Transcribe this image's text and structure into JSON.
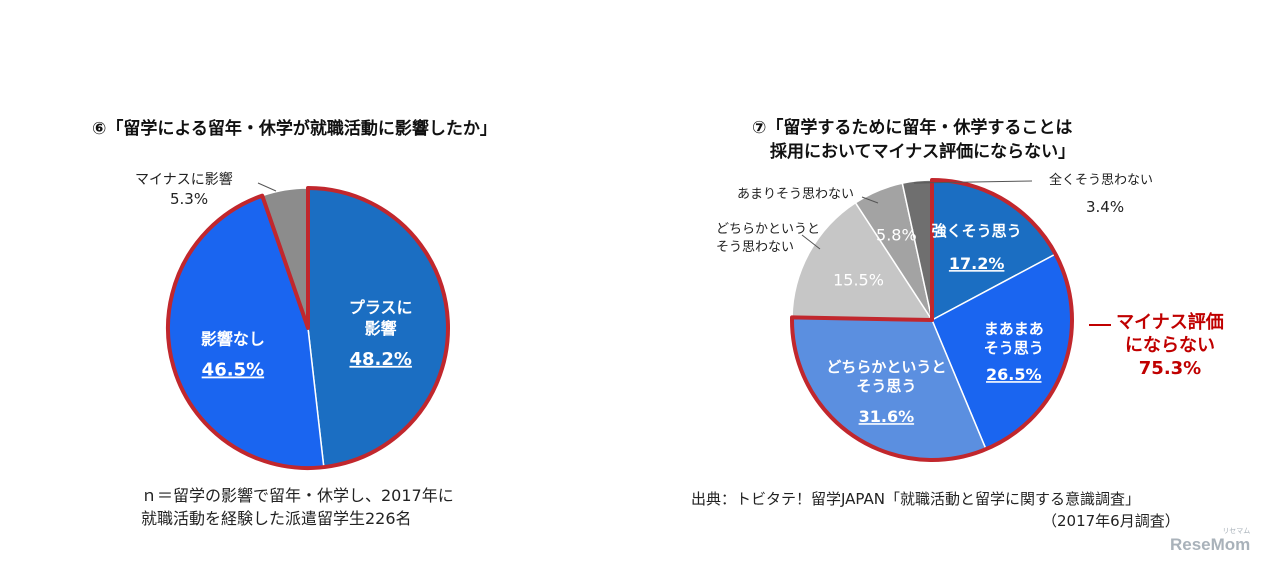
{
  "chart_data": [
    {
      "type": "pie",
      "title": "⑥「留学による留年・休学が就職活動に影響したか」",
      "slices": [
        {
          "label": "プラスに影響",
          "lines": [
            "プラスに",
            "影響"
          ],
          "value": 48.2,
          "value_text": "48.2%",
          "color": "#1b6ec2"
        },
        {
          "label": "影響なし",
          "lines": [
            "影響なし"
          ],
          "value": 46.5,
          "value_text": "46.5%",
          "color": "#1a65f0"
        },
        {
          "label": "マイナスに影響",
          "lines": [
            "マイナスに影響"
          ],
          "value": 5.3,
          "value_text": "5.3%",
          "color": "#8c8c8c"
        }
      ],
      "highlight": "red outline around プラスに影響 + 影響なし",
      "note_lines": [
        "ｎ＝留学の影響で留年・休学し、2017年に",
        "就職活動を経験した派遣留学生226名"
      ]
    },
    {
      "type": "pie",
      "title_lines": [
        "⑦「留学するために留年・休学することは",
        "採用においてマイナス評価にならない」"
      ],
      "slices": [
        {
          "label": "強くそう思う",
          "lines": [
            "強くそう思う"
          ],
          "value": 17.2,
          "value_text": "17.2%",
          "color": "#1b6ec2"
        },
        {
          "label": "まあまあそう思う",
          "lines": [
            "まあまあ",
            "そう思う"
          ],
          "value": 26.5,
          "value_text": "26.5%",
          "color": "#1a65f0"
        },
        {
          "label": "どちらかというとそう思う",
          "lines": [
            "どちらかというと",
            "そう思う"
          ],
          "value": 31.6,
          "value_text": "31.6%",
          "color": "#5b8fe0"
        },
        {
          "label": "どちらかというとそう思わない",
          "lines": [
            "どちらかというと",
            "そう思わない"
          ],
          "value": 15.5,
          "value_text": "15.5%",
          "color": "#c6c6c6"
        },
        {
          "label": "あまりそう思わない",
          "lines": [
            "あまりそう思わない"
          ],
          "value": 5.8,
          "value_text": "5.8%",
          "color": "#a3a3a3"
        },
        {
          "label": "全くそう思わない",
          "lines": [
            "全くそう思わない"
          ],
          "value": 3.4,
          "value_text": "3.4%",
          "color": "#6f6f6f"
        }
      ],
      "highlight": "red outline around 強くそう思う + まあまあそう思う + どちらかというとそう思う",
      "summary_lines": [
        "マイナス評価",
        "にならない",
        "75.3%"
      ],
      "source_lines": [
        "出典：トビタテ！留学JAPAN「就職活動と留学に関する意識調査」",
        "（2017年6月調査）"
      ]
    }
  ],
  "brand": {
    "text": "ReseMom",
    "tag": "リセマム"
  }
}
